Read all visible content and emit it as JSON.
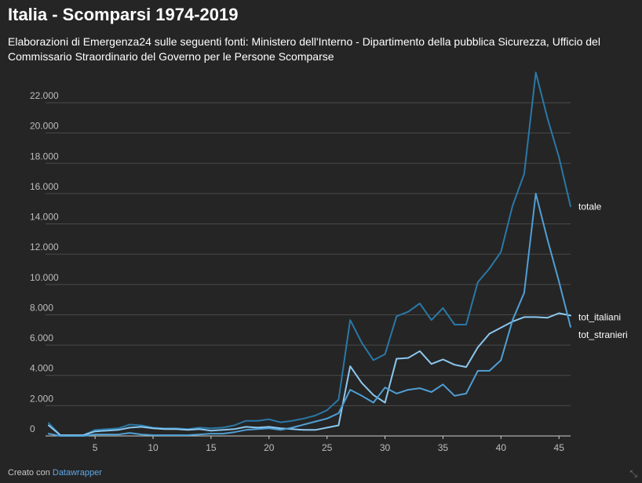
{
  "header": {
    "title": "Italia - Scomparsi 1974-2019",
    "subtitle": "Elaborazioni di Emergenza24 sulle seguenti fonti: Ministero dell'Interno - Dipartimento della pubblica Sicurezza, Ufficio del Commissario Straordinario del Governo per le Persone Scomparse"
  },
  "footer": {
    "prefix": "Creato con",
    "link": "Datawrapper"
  },
  "chart_data": {
    "type": "line",
    "title": "Italia - Scomparsi 1974-2019",
    "xlabel": "",
    "ylabel": "",
    "ylim": [
      0,
      22000
    ],
    "xlim": [
      1,
      46
    ],
    "grid": true,
    "legend": "direct labels at line ends",
    "x": [
      1,
      2,
      3,
      4,
      5,
      6,
      7,
      8,
      9,
      10,
      11,
      12,
      13,
      14,
      15,
      16,
      17,
      18,
      19,
      20,
      21,
      22,
      23,
      24,
      25,
      26,
      27,
      28,
      29,
      30,
      31,
      32,
      33,
      34,
      35,
      36,
      37,
      38,
      39,
      40,
      41,
      42,
      43,
      44,
      45,
      46
    ],
    "y_ticks": [
      {
        "value": 0,
        "label": "0"
      },
      {
        "value": 2000,
        "label": "2.000"
      },
      {
        "value": 4000,
        "label": "4.000"
      },
      {
        "value": 6000,
        "label": "6.000"
      },
      {
        "value": 8000,
        "label": "8.000"
      },
      {
        "value": 10000,
        "label": "10.000"
      },
      {
        "value": 12000,
        "label": "12.000"
      },
      {
        "value": 14000,
        "label": "14.000"
      },
      {
        "value": 16000,
        "label": "16.000"
      },
      {
        "value": 18000,
        "label": "18.000"
      },
      {
        "value": 20000,
        "label": "20.000"
      },
      {
        "value": 22000,
        "label": "22.000"
      }
    ],
    "x_ticks": [
      {
        "value": 5,
        "label": "5"
      },
      {
        "value": 10,
        "label": "10"
      },
      {
        "value": 15,
        "label": "15"
      },
      {
        "value": 20,
        "label": "20"
      },
      {
        "value": 25,
        "label": "25"
      },
      {
        "value": 30,
        "label": "30"
      },
      {
        "value": 35,
        "label": "35"
      },
      {
        "value": 40,
        "label": "40"
      },
      {
        "value": 45,
        "label": "45"
      }
    ],
    "series": [
      {
        "name": "totale",
        "color": "#2a78a6",
        "values": [
          850,
          50,
          50,
          50,
          400,
          450,
          500,
          750,
          700,
          550,
          500,
          500,
          450,
          550,
          500,
          550,
          700,
          1000,
          1000,
          1100,
          900,
          1000,
          1150,
          1350,
          1700,
          2400,
          7650,
          6150,
          5000,
          5400,
          7900,
          8200,
          8750,
          7650,
          8450,
          7350,
          7350,
          10150,
          11050,
          12150,
          15200,
          17300,
          24000,
          21000,
          18400,
          15150
        ]
      },
      {
        "name": "tot_italiani",
        "color": "#8cc8f0",
        "values": [
          700,
          50,
          50,
          50,
          300,
          350,
          400,
          550,
          600,
          500,
          450,
          450,
          400,
          450,
          350,
          400,
          450,
          600,
          550,
          600,
          500,
          450,
          400,
          400,
          550,
          700,
          4600,
          3500,
          2700,
          2200,
          5100,
          5150,
          5600,
          4750,
          5050,
          4700,
          4550,
          5850,
          6750,
          7150,
          7550,
          7850,
          7850,
          7800,
          8100,
          7950
        ]
      },
      {
        "name": "tot_stranieri",
        "color": "#4f9fd4",
        "values": [
          150,
          0,
          0,
          0,
          100,
          100,
          100,
          200,
          100,
          50,
          50,
          50,
          50,
          100,
          150,
          150,
          250,
          400,
          450,
          500,
          400,
          550,
          750,
          950,
          1150,
          1500,
          3050,
          2650,
          2200,
          3200,
          2800,
          3050,
          3150,
          2900,
          3400,
          2650,
          2800,
          4300,
          4300,
          5000,
          7650,
          9450,
          16000,
          13000,
          10200,
          7200
        ]
      }
    ]
  }
}
